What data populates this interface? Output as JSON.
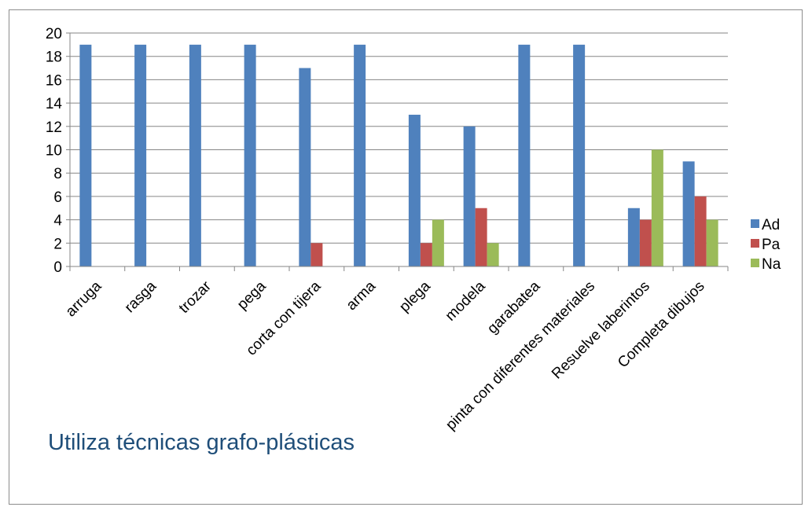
{
  "chart_data": {
    "type": "bar",
    "title": "Utiliza técnicas grafo-plásticas",
    "categories": [
      "arruga",
      "rasga",
      "trozar",
      "pega",
      "corta con tijera",
      "arma",
      "plega",
      "modela",
      "garabatea",
      "pinta con diferentes materiales",
      "Resuelve laberintos",
      "Completa dibujos"
    ],
    "series": [
      {
        "name": "Ad",
        "color": "#4f81bd",
        "values": [
          19,
          19,
          19,
          19,
          17,
          19,
          13,
          12,
          19,
          19,
          5,
          9
        ]
      },
      {
        "name": "Pa",
        "color": "#c0504d",
        "values": [
          0,
          0,
          0,
          0,
          2,
          0,
          2,
          5,
          0,
          0,
          4,
          6
        ]
      },
      {
        "name": "Na",
        "color": "#9bbb59",
        "values": [
          0,
          0,
          0,
          0,
          0,
          0,
          4,
          2,
          0,
          0,
          10,
          4
        ]
      }
    ],
    "ylim": [
      0,
      20
    ],
    "yticks": [
      0,
      2,
      4,
      6,
      8,
      10,
      12,
      14,
      16,
      18,
      20
    ],
    "grid": true,
    "legend_position": "right"
  }
}
